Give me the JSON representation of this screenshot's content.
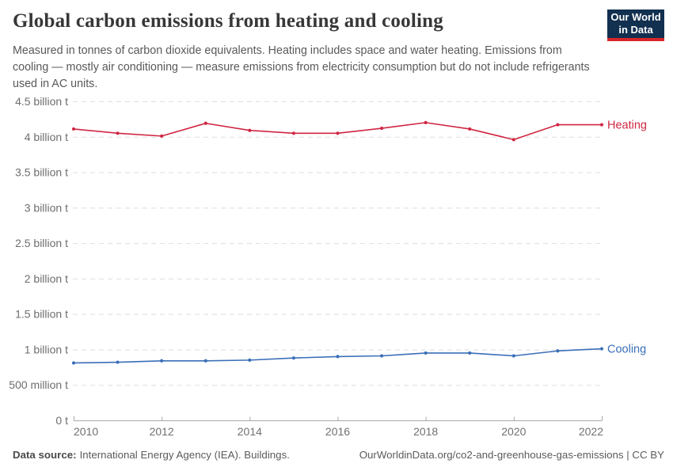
{
  "header": {
    "title": "Global carbon emissions from heating and cooling",
    "subtitle": "Measured in tonnes of carbon dioxide equivalents. Heating includes space and water heating. Emissions from cooling — mostly air conditioning — measure emissions from electricity consumption but do not include refrigerants used in AC units."
  },
  "logo": {
    "line1": "Our World",
    "line2": "in Data",
    "bg_color": "#12304f",
    "bar_color": "#d8262a"
  },
  "chart_data": {
    "type": "line",
    "title": "Global carbon emissions from heating and cooling",
    "x": [
      2010,
      2011,
      2012,
      2013,
      2014,
      2015,
      2016,
      2017,
      2018,
      2019,
      2020,
      2021,
      2022
    ],
    "series": [
      {
        "name": "Heating",
        "color": "#d02642",
        "values": [
          4.11,
          4.05,
          4.01,
          4.19,
          4.09,
          4.05,
          4.05,
          4.12,
          4.2,
          4.11,
          3.96,
          4.17,
          4.17
        ]
      },
      {
        "name": "Cooling",
        "color": "#3a6fb8",
        "values": [
          0.81,
          0.82,
          0.84,
          0.84,
          0.85,
          0.88,
          0.9,
          0.91,
          0.95,
          0.95,
          0.91,
          0.98,
          1.01
        ]
      }
    ],
    "values_unit": "billion t",
    "ylim": [
      0,
      4.5
    ],
    "y_ticks": [
      {
        "value": 0,
        "label": "0 t"
      },
      {
        "value": 0.5,
        "label": "500 million t"
      },
      {
        "value": 1,
        "label": "1 billion t"
      },
      {
        "value": 1.5,
        "label": "1.5 billion t"
      },
      {
        "value": 2,
        "label": "2 billion t"
      },
      {
        "value": 2.5,
        "label": "2.5 billion t"
      },
      {
        "value": 3,
        "label": "3 billion t"
      },
      {
        "value": 3.5,
        "label": "3.5 billion t"
      },
      {
        "value": 4,
        "label": "4 billion t"
      },
      {
        "value": 4.5,
        "label": "4.5 billion t"
      }
    ],
    "x_ticks": [
      2010,
      2012,
      2014,
      2016,
      2018,
      2020,
      2022
    ],
    "grid": "horizontal-dashed",
    "legend_position": "end-of-line",
    "colors": {
      "grid": "#dedede",
      "axis": "#a9a9a9",
      "tick_label": "#6e6e6e"
    }
  },
  "footer": {
    "source_label": "Data source:",
    "source_text": "International Energy Agency (IEA). Buildings.",
    "credit": "OurWorldinData.org/co2-and-greenhouse-gas-emissions | CC BY"
  }
}
